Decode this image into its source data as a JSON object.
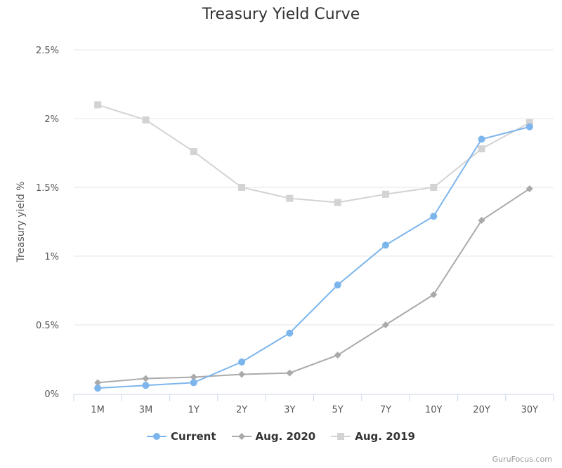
{
  "chart_data": {
    "type": "line",
    "title": "Treasury Yield Curve",
    "ylabel": "Treasury yield %",
    "xlabel": "",
    "categories": [
      "1M",
      "3M",
      "1Y",
      "2Y",
      "3Y",
      "5Y",
      "7Y",
      "10Y",
      "20Y",
      "30Y"
    ],
    "ylim": [
      0,
      2.5
    ],
    "yticks": [
      {
        "value": 0,
        "label": "0%"
      },
      {
        "value": 0.5,
        "label": "0.5%"
      },
      {
        "value": 1,
        "label": "1%"
      },
      {
        "value": 1.5,
        "label": "1.5%"
      },
      {
        "value": 2,
        "label": "2%"
      },
      {
        "value": 2.5,
        "label": "2.5%"
      }
    ],
    "grid": true,
    "legend_position": "bottom-center",
    "series": [
      {
        "name": "Current",
        "color": "#7cb5ec",
        "marker": "circle",
        "values": [
          0.04,
          0.06,
          0.08,
          0.23,
          0.44,
          0.79,
          1.08,
          1.29,
          1.85,
          1.94
        ]
      },
      {
        "name": "Aug. 2020",
        "color": "#aaaaaa",
        "marker": "diamond",
        "values": [
          0.08,
          0.11,
          0.12,
          0.14,
          0.15,
          0.28,
          0.5,
          0.72,
          1.26,
          1.49
        ]
      },
      {
        "name": "Aug. 2019",
        "color": "#d3d3d3",
        "marker": "square",
        "values": [
          2.1,
          1.99,
          1.76,
          1.5,
          1.42,
          1.39,
          1.45,
          1.5,
          1.78,
          1.97
        ]
      }
    ]
  },
  "credit": "GuruFocus.com"
}
